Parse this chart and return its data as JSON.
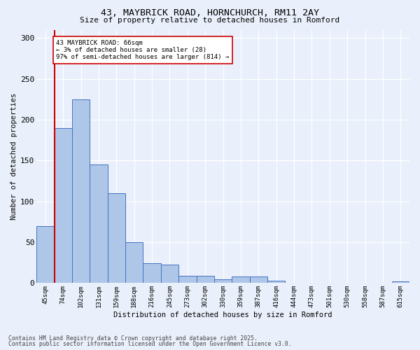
{
  "title1": "43, MAYBRICK ROAD, HORNCHURCH, RM11 2AY",
  "title2": "Size of property relative to detached houses in Romford",
  "xlabel": "Distribution of detached houses by size in Romford",
  "ylabel": "Number of detached properties",
  "bar_labels": [
    "45sqm",
    "74sqm",
    "102sqm",
    "131sqm",
    "159sqm",
    "188sqm",
    "216sqm",
    "245sqm",
    "273sqm",
    "302sqm",
    "330sqm",
    "359sqm",
    "387sqm",
    "416sqm",
    "444sqm",
    "473sqm",
    "501sqm",
    "530sqm",
    "558sqm",
    "587sqm",
    "615sqm"
  ],
  "bar_values": [
    70,
    190,
    225,
    145,
    110,
    50,
    24,
    23,
    9,
    9,
    5,
    8,
    8,
    3,
    0,
    0,
    0,
    0,
    0,
    0,
    2
  ],
  "bar_color": "#aec6e8",
  "bar_edge_color": "#4472c4",
  "background_color": "#eaf0fb",
  "grid_color": "#ffffff",
  "vline_color": "#cc0000",
  "annotation_text": "43 MAYBRICK ROAD: 66sqm\n← 3% of detached houses are smaller (28)\n97% of semi-detached houses are larger (814) →",
  "annotation_box_color": "#ffffff",
  "annotation_box_edge": "#cc0000",
  "footer1": "Contains HM Land Registry data © Crown copyright and database right 2025.",
  "footer2": "Contains public sector information licensed under the Open Government Licence v3.0.",
  "ylim": [
    0,
    310
  ],
  "yticks": [
    0,
    50,
    100,
    150,
    200,
    250,
    300
  ]
}
